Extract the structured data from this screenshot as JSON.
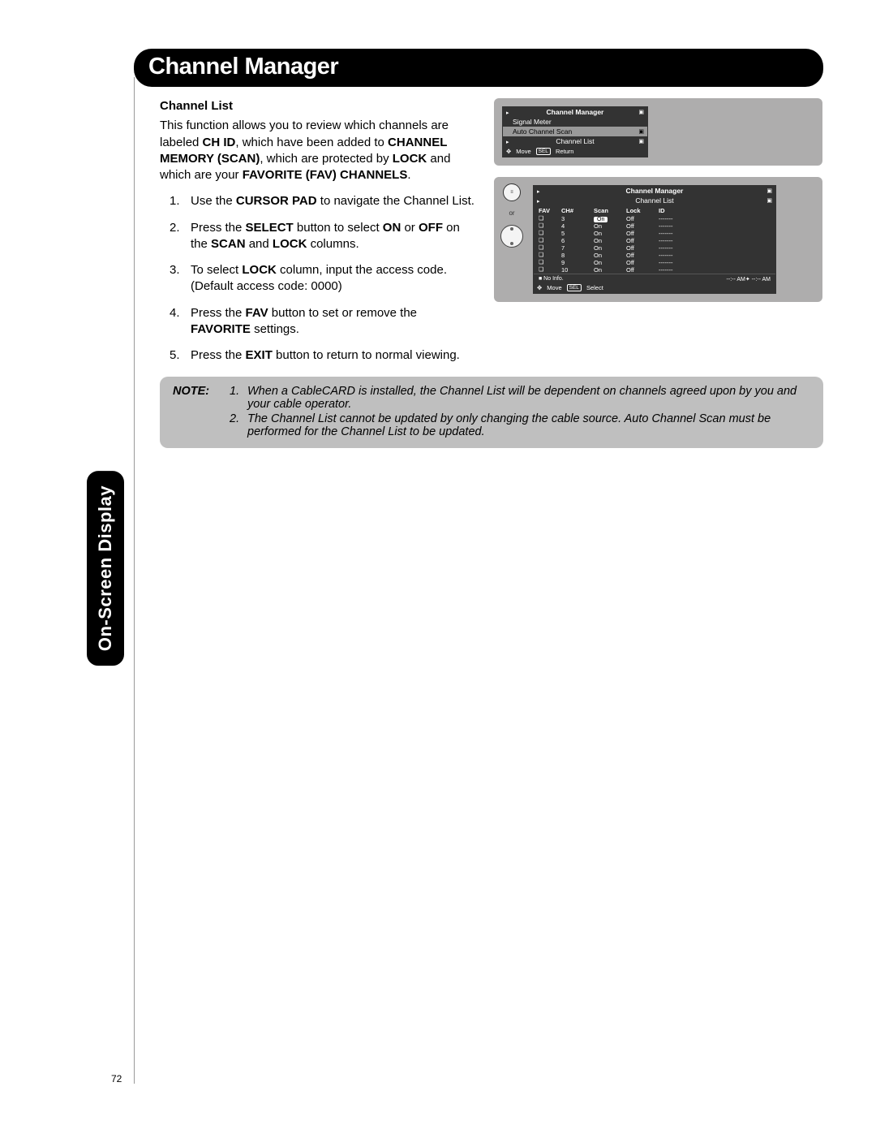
{
  "header_title": "Channel Manager",
  "side_tab": "On-Screen Display",
  "page_number": "72",
  "section": {
    "title": "Channel List",
    "intro_parts": [
      "This function allows you to review which channels are labeled ",
      "CH ID",
      ", which have been added to ",
      "CHANNEL MEMORY (SCAN)",
      ", which are protected by ",
      "LOCK",
      " and which are your ",
      "FAVORITE (FAV) CHANNELS",
      "."
    ],
    "steps": [
      {
        "pre": "Use the ",
        "b1": "CURSOR PAD",
        "mid": " to navigate the Channel List.",
        "b2": "",
        "end": ""
      },
      {
        "pre": "Press the ",
        "b1": "SELECT",
        "mid": " button to select ",
        "b2": "ON",
        "mid2": " or ",
        "b3": "OFF",
        "mid3": " on the ",
        "b4": "SCAN",
        "mid4": " and ",
        "b5": "LOCK",
        "end": " columns."
      },
      {
        "pre": "To select ",
        "b1": "LOCK",
        "mid": " column, input the access code. (Default access code: 0000)",
        "b2": "",
        "end": ""
      },
      {
        "pre": "Press the ",
        "b1": "FAV",
        "mid": " button to set or remove the ",
        "b2": "FAVORITE",
        "end": " settings."
      },
      {
        "pre": "Press the ",
        "b1": "EXIT",
        "mid": " button to return to normal viewing.",
        "b2": "",
        "end": ""
      }
    ]
  },
  "osd1": {
    "title": "Channel Manager",
    "items": [
      "Signal Meter",
      "Auto Channel Scan",
      "Channel List"
    ],
    "highlighted_index": 1,
    "footer_move": "Move",
    "footer_sel": "SEL",
    "footer_return": "Return"
  },
  "osd2": {
    "remote_or": "or",
    "title": "Channel Manager",
    "subtitle": "Channel List",
    "columns": [
      "FAV",
      "CH#",
      "Scan",
      "Lock",
      "ID"
    ],
    "rows": [
      {
        "fav": "❏",
        "ch": "3",
        "scan": "On",
        "scan_hl": true,
        "lock": "Off",
        "id": "-------"
      },
      {
        "fav": "❏",
        "ch": "4",
        "scan": "On",
        "scan_hl": false,
        "lock": "Off",
        "id": "-------"
      },
      {
        "fav": "❏",
        "ch": "5",
        "scan": "On",
        "scan_hl": false,
        "lock": "Off",
        "id": "-------"
      },
      {
        "fav": "❏",
        "ch": "6",
        "scan": "On",
        "scan_hl": false,
        "lock": "Off",
        "id": "-------"
      },
      {
        "fav": "❏",
        "ch": "7",
        "scan": "On",
        "scan_hl": false,
        "lock": "Off",
        "id": "-------"
      },
      {
        "fav": "❏",
        "ch": "8",
        "scan": "On",
        "scan_hl": false,
        "lock": "Off",
        "id": "-------"
      },
      {
        "fav": "❏",
        "ch": "9",
        "scan": "On",
        "scan_hl": false,
        "lock": "Off",
        "id": "-------"
      },
      {
        "fav": "❏",
        "ch": "10",
        "scan": "On",
        "scan_hl": false,
        "lock": "Off",
        "id": "-------"
      }
    ],
    "info_left": "■ No Info.",
    "info_right": "--:-- AM✦  --:-- AM",
    "footer_move": "Move",
    "footer_sel": "SEL",
    "footer_select": "Select"
  },
  "note": {
    "label": "NOTE:",
    "items": [
      "When a CableCARD is installed, the Channel List will be dependent on channels agreed upon by you and your cable operator.",
      "The Channel List cannot be updated by only changing the cable source.  Auto Channel Scan must be performed for the Channel List to be updated."
    ]
  },
  "colors": {
    "page_bg": "#ffffff",
    "header_bg": "#000000",
    "header_fg": "#ffffff",
    "osd_bg": "#aeadad",
    "menu_bg": "#333333",
    "menu_hl": "#999999",
    "note_bg": "#bfbfbf"
  }
}
